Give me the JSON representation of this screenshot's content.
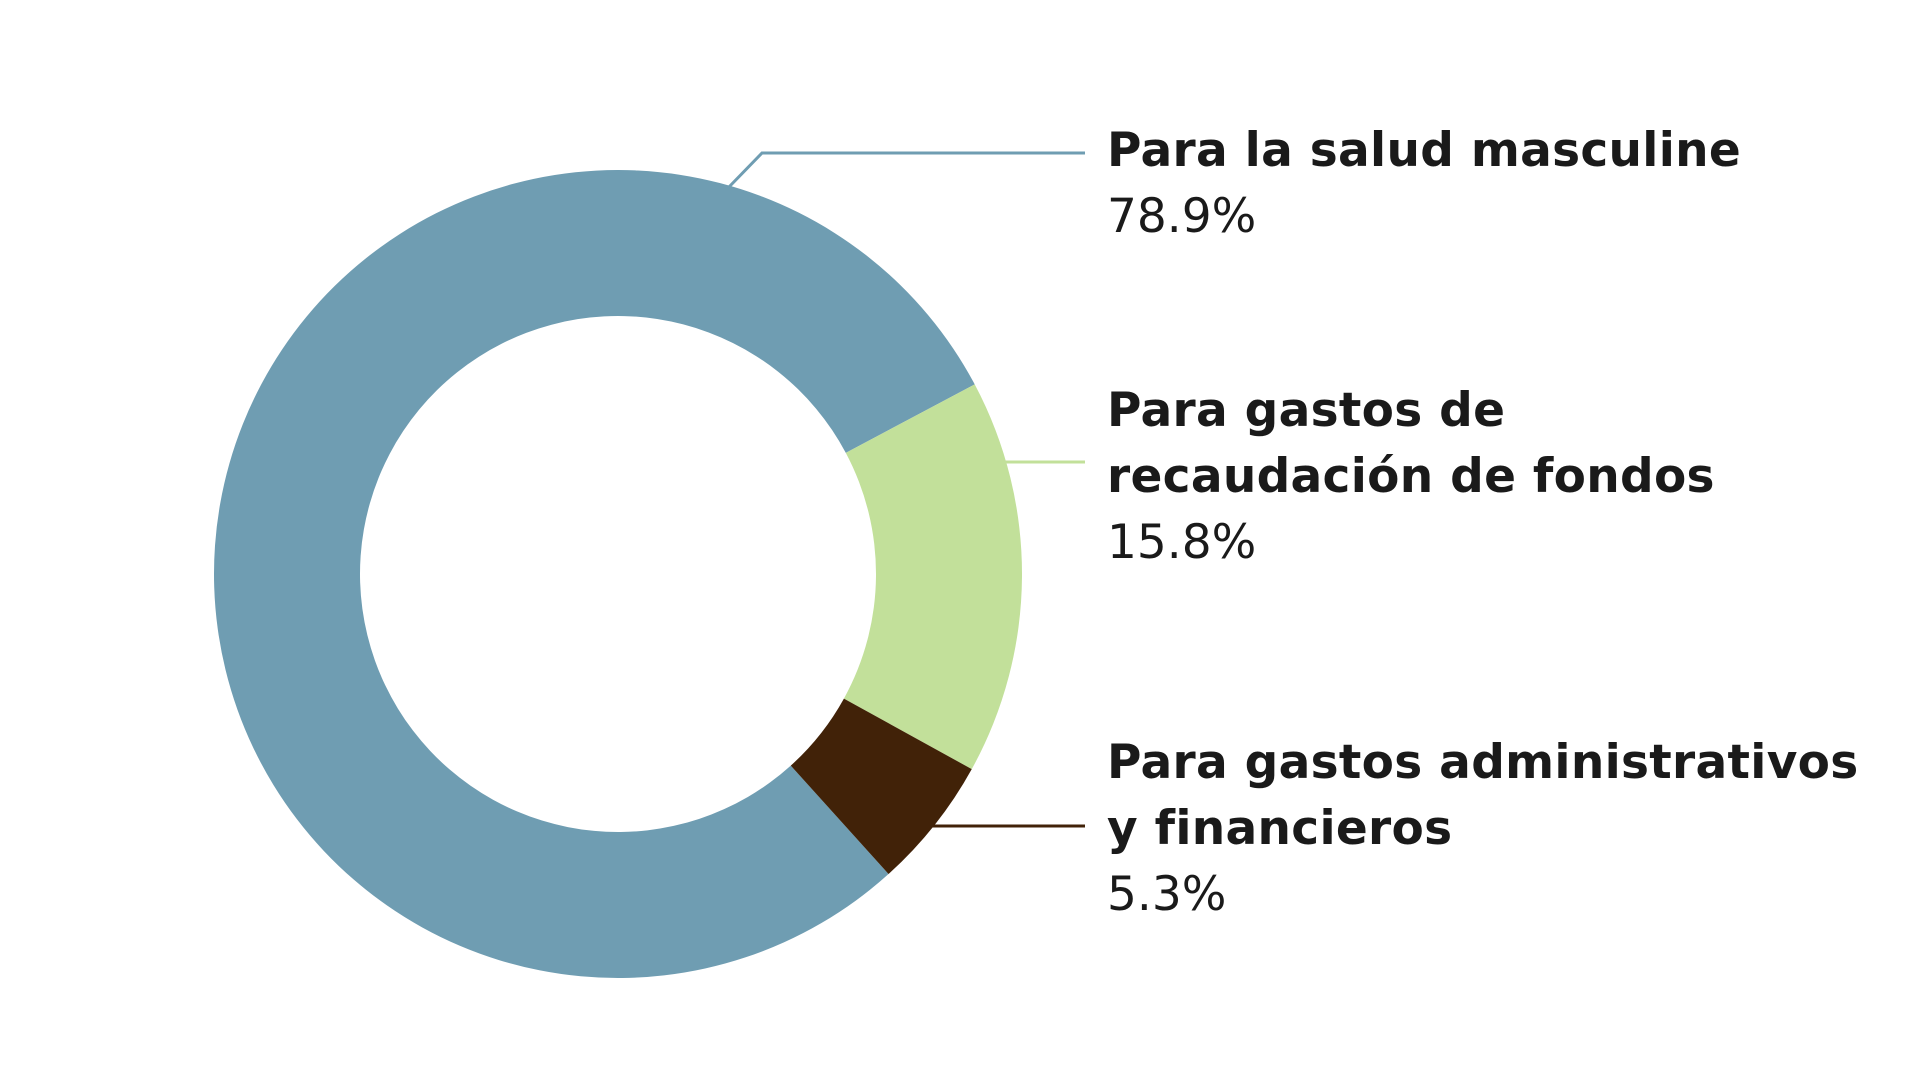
{
  "chart_data": {
    "type": "pie",
    "variant": "donut",
    "categories": [
      "Para la salud masculine",
      "Para gastos de\nrecaudación de fondos",
      "Para gastos administrativos\ny financieros"
    ],
    "values": [
      78.9,
      15.8,
      5.3
    ],
    "value_labels": [
      "78.9%",
      "15.8%",
      "5.3%"
    ],
    "colors": [
      "#6f9db2",
      "#c2e09a",
      "#412208"
    ],
    "legend": "right, connected by leader lines"
  }
}
